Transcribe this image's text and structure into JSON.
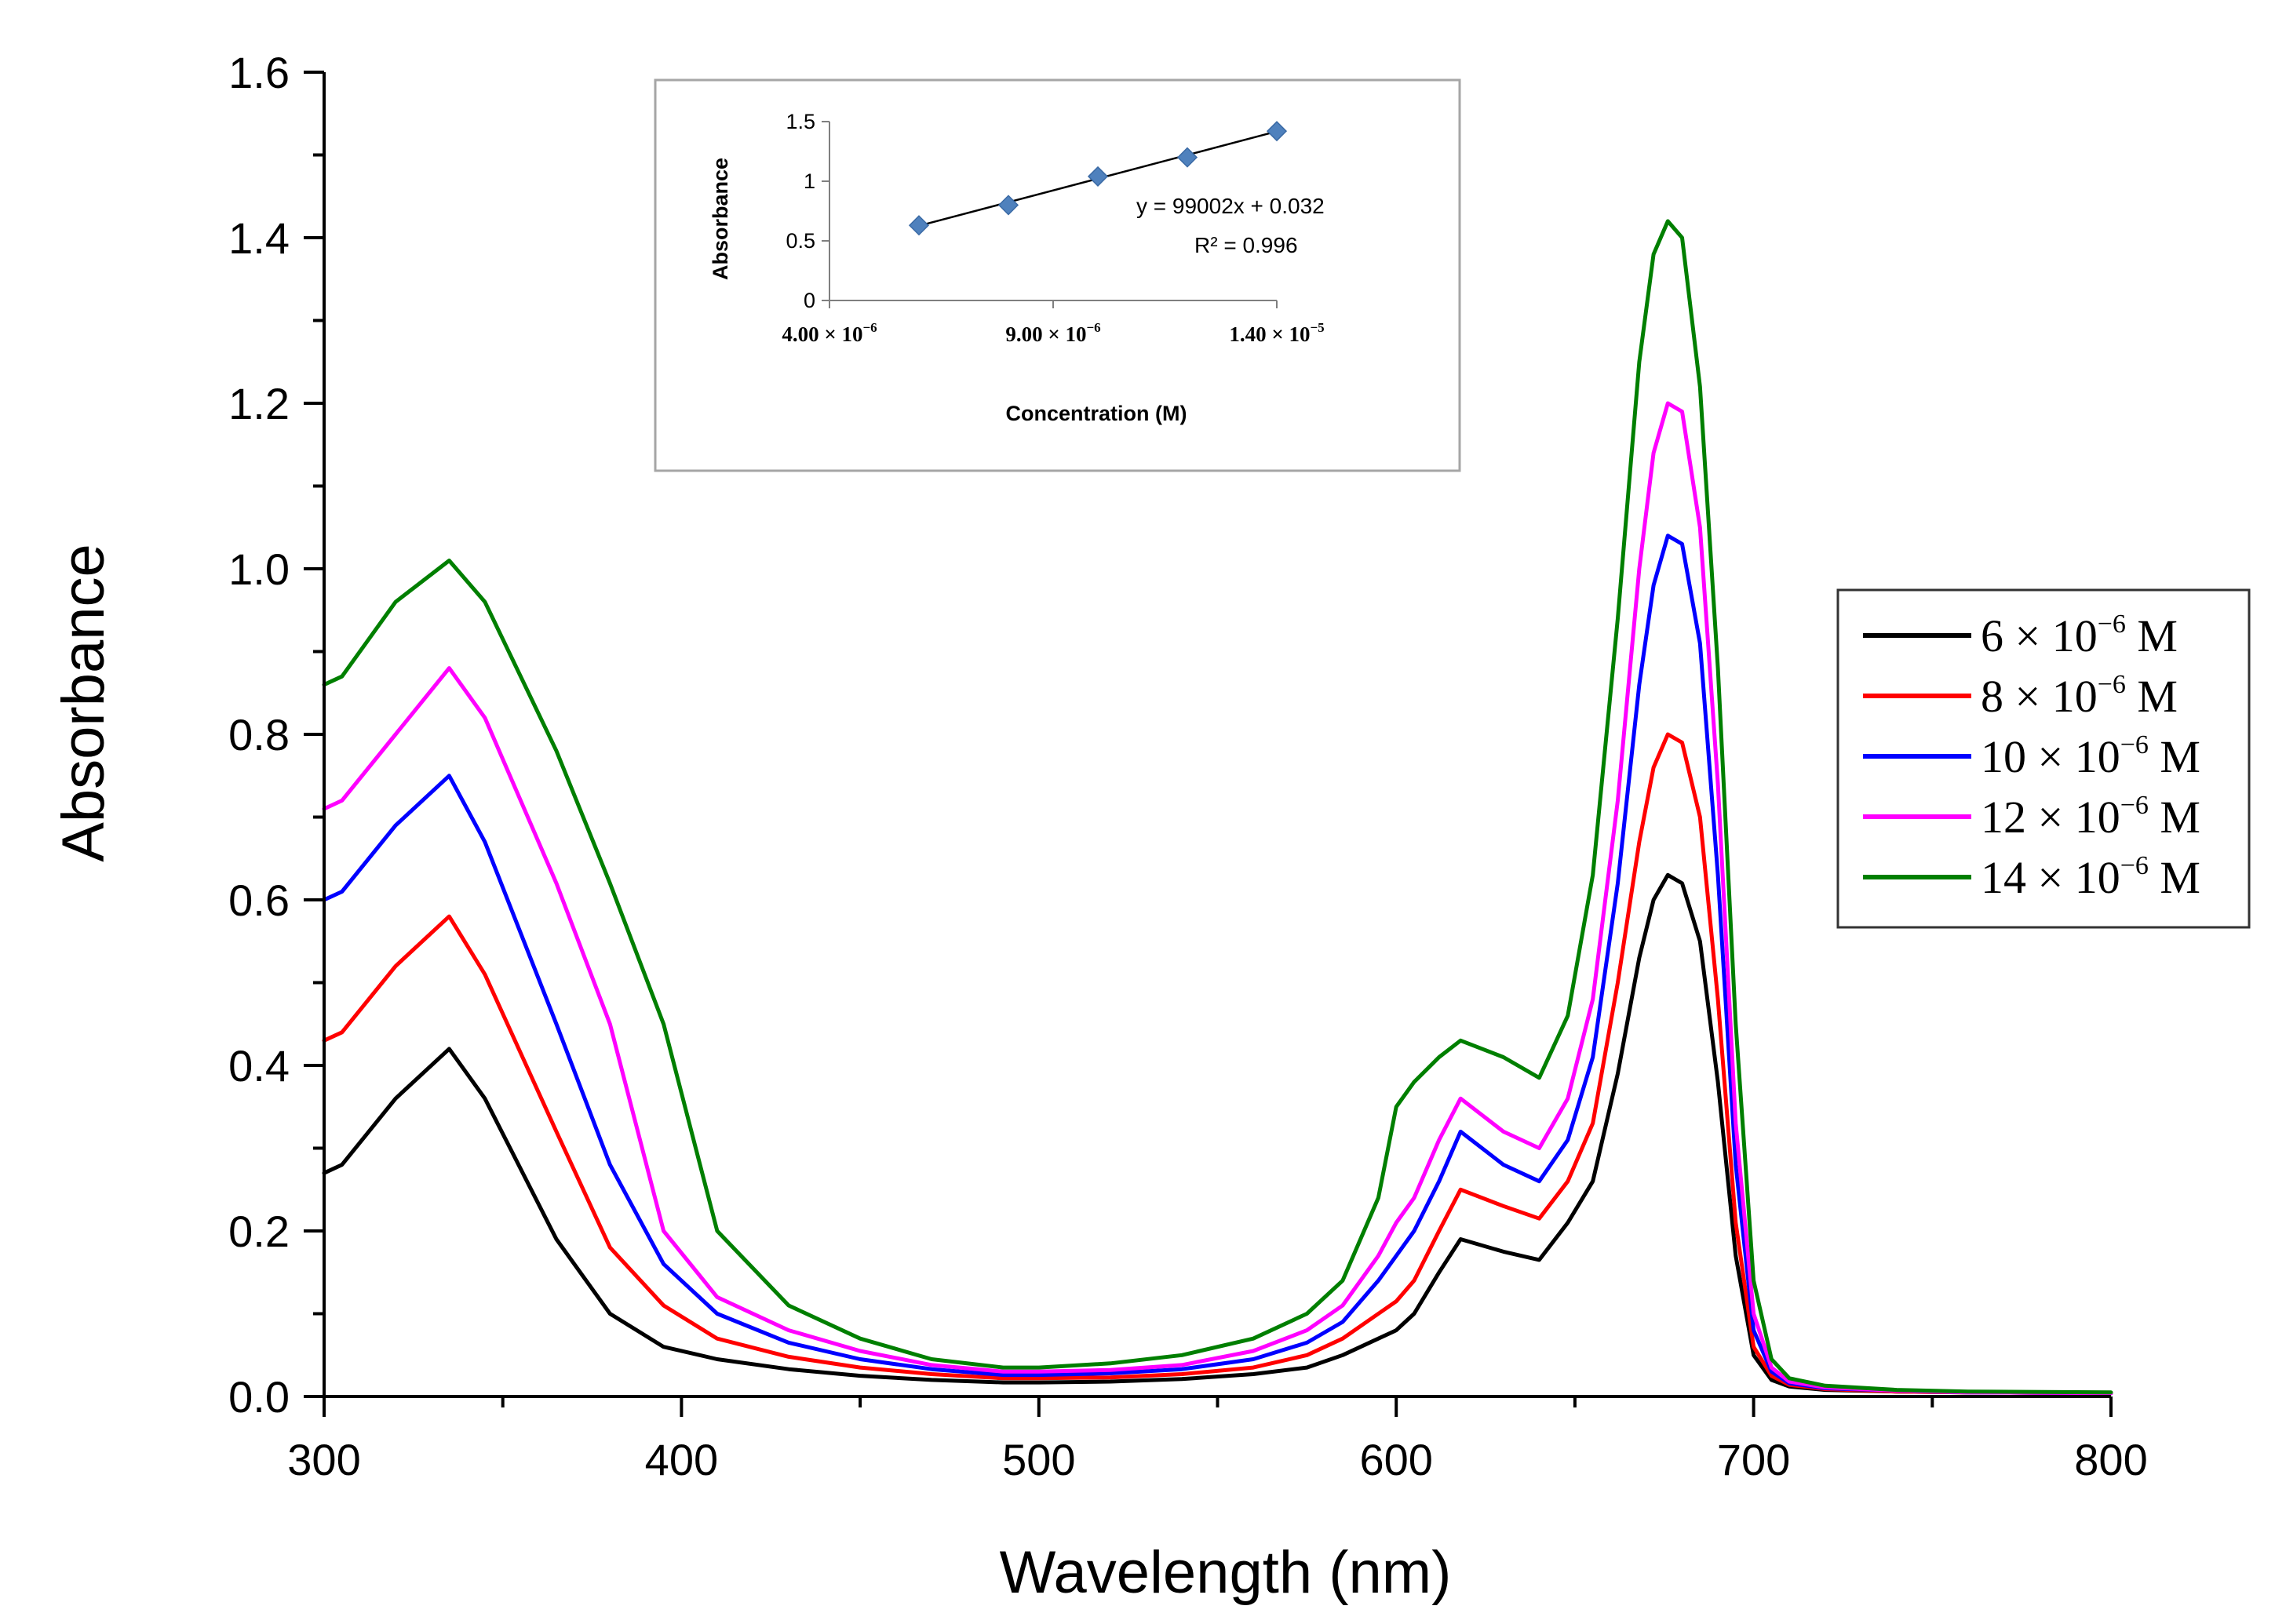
{
  "colors": {
    "series": [
      "#000000",
      "#ff0000",
      "#0000ff",
      "#ff00ff",
      "#007f00"
    ],
    "inset_marker": "#4f81bd",
    "inset_border": "#a6a6a6"
  },
  "chart_data": [
    {
      "type": "line",
      "title": "",
      "xlabel": "Wavelength (nm)",
      "ylabel": "Absorbance",
      "xlim": [
        300,
        800
      ],
      "ylim": [
        0.0,
        1.6
      ],
      "xticks": [
        "300",
        "400",
        "500",
        "600",
        "700",
        "800"
      ],
      "yticks": [
        "0.0",
        "0.2",
        "0.4",
        "0.6",
        "0.8",
        "1.0",
        "1.2",
        "1.4",
        "1.6"
      ],
      "legend_position": "right",
      "x": [
        300,
        305,
        320,
        335,
        345,
        365,
        380,
        395,
        410,
        430,
        450,
        470,
        490,
        500,
        520,
        540,
        560,
        575,
        585,
        595,
        600,
        605,
        612,
        618,
        630,
        640,
        648,
        655,
        662,
        668,
        672,
        676,
        680,
        685,
        690,
        695,
        700,
        705,
        710,
        720,
        740,
        760,
        800
      ],
      "series": [
        {
          "name_prefix": "6 × 10",
          "name_exp": "−6",
          "name_suffix": " M",
          "values": [
            0.27,
            0.28,
            0.36,
            0.42,
            0.36,
            0.19,
            0.1,
            0.06,
            0.045,
            0.033,
            0.025,
            0.02,
            0.017,
            0.017,
            0.018,
            0.021,
            0.027,
            0.035,
            0.05,
            0.07,
            0.08,
            0.1,
            0.15,
            0.19,
            0.175,
            0.165,
            0.21,
            0.26,
            0.39,
            0.53,
            0.6,
            0.63,
            0.62,
            0.55,
            0.38,
            0.17,
            0.05,
            0.02,
            0.012,
            0.008,
            0.006,
            0.005,
            0.004
          ]
        },
        {
          "name_prefix": "8 × 10",
          "name_exp": "−6",
          "name_suffix": " M",
          "values": [
            0.43,
            0.44,
            0.52,
            0.58,
            0.51,
            0.32,
            0.18,
            0.11,
            0.07,
            0.048,
            0.035,
            0.027,
            0.022,
            0.022,
            0.023,
            0.027,
            0.035,
            0.05,
            0.07,
            0.1,
            0.115,
            0.14,
            0.2,
            0.25,
            0.23,
            0.215,
            0.26,
            0.33,
            0.5,
            0.67,
            0.76,
            0.8,
            0.79,
            0.7,
            0.48,
            0.21,
            0.06,
            0.025,
            0.014,
            0.009,
            0.006,
            0.005,
            0.004
          ]
        },
        {
          "name_prefix": "10 × 10",
          "name_exp": "−6",
          "name_suffix": " M",
          "values": [
            0.6,
            0.61,
            0.69,
            0.75,
            0.67,
            0.45,
            0.28,
            0.16,
            0.1,
            0.065,
            0.045,
            0.033,
            0.026,
            0.026,
            0.028,
            0.033,
            0.045,
            0.065,
            0.09,
            0.14,
            0.17,
            0.2,
            0.26,
            0.32,
            0.28,
            0.26,
            0.31,
            0.41,
            0.62,
            0.86,
            0.98,
            1.04,
            1.03,
            0.91,
            0.63,
            0.28,
            0.08,
            0.03,
            0.016,
            0.01,
            0.007,
            0.005,
            0.004
          ]
        },
        {
          "name_prefix": "12 × 10",
          "name_exp": "−6",
          "name_suffix": " M",
          "values": [
            0.71,
            0.72,
            0.8,
            0.88,
            0.82,
            0.62,
            0.45,
            0.2,
            0.12,
            0.08,
            0.055,
            0.038,
            0.03,
            0.03,
            0.032,
            0.038,
            0.055,
            0.08,
            0.11,
            0.17,
            0.21,
            0.24,
            0.31,
            0.36,
            0.32,
            0.3,
            0.36,
            0.48,
            0.72,
            1.0,
            1.14,
            1.2,
            1.19,
            1.05,
            0.74,
            0.33,
            0.1,
            0.035,
            0.018,
            0.011,
            0.007,
            0.005,
            0.004
          ]
        },
        {
          "name_prefix": "14 × 10",
          "name_exp": "−6",
          "name_suffix": " M",
          "values": [
            0.86,
            0.87,
            0.96,
            1.01,
            0.96,
            0.78,
            0.62,
            0.45,
            0.2,
            0.11,
            0.07,
            0.045,
            0.035,
            0.035,
            0.04,
            0.05,
            0.07,
            0.1,
            0.14,
            0.24,
            0.35,
            0.38,
            0.41,
            0.43,
            0.41,
            0.385,
            0.46,
            0.63,
            0.94,
            1.25,
            1.38,
            1.42,
            1.4,
            1.22,
            0.88,
            0.45,
            0.14,
            0.045,
            0.022,
            0.013,
            0.008,
            0.006,
            0.005
          ]
        }
      ]
    },
    {
      "type": "scatter",
      "title": "",
      "xlabel": "Concentration (M)",
      "ylabel": "Absorbance",
      "xlim": [
        4e-06,
        1.4e-05
      ],
      "ylim": [
        0,
        1.5
      ],
      "xtick_values": [
        4e-06,
        9e-06,
        1.4e-05
      ],
      "xtick_labels": [
        {
          "mantissa": "4.00 × 10",
          "exp": "−6"
        },
        {
          "mantissa": "9.00 × 10",
          "exp": "−6"
        },
        {
          "mantissa": "1.40 × 10",
          "exp": "−5"
        }
      ],
      "yticks": [
        "0",
        "0.5",
        "1",
        "1.5"
      ],
      "x": [
        6e-06,
        8e-06,
        1e-05,
        1.2e-05,
        1.4e-05
      ],
      "y": [
        0.63,
        0.8,
        1.04,
        1.2,
        1.42
      ],
      "trendline": {
        "slope": 99002,
        "intercept": 0.032
      },
      "equation": "y = 99002x + 0.032",
      "r_squared_label": "R² = 0.996"
    }
  ]
}
